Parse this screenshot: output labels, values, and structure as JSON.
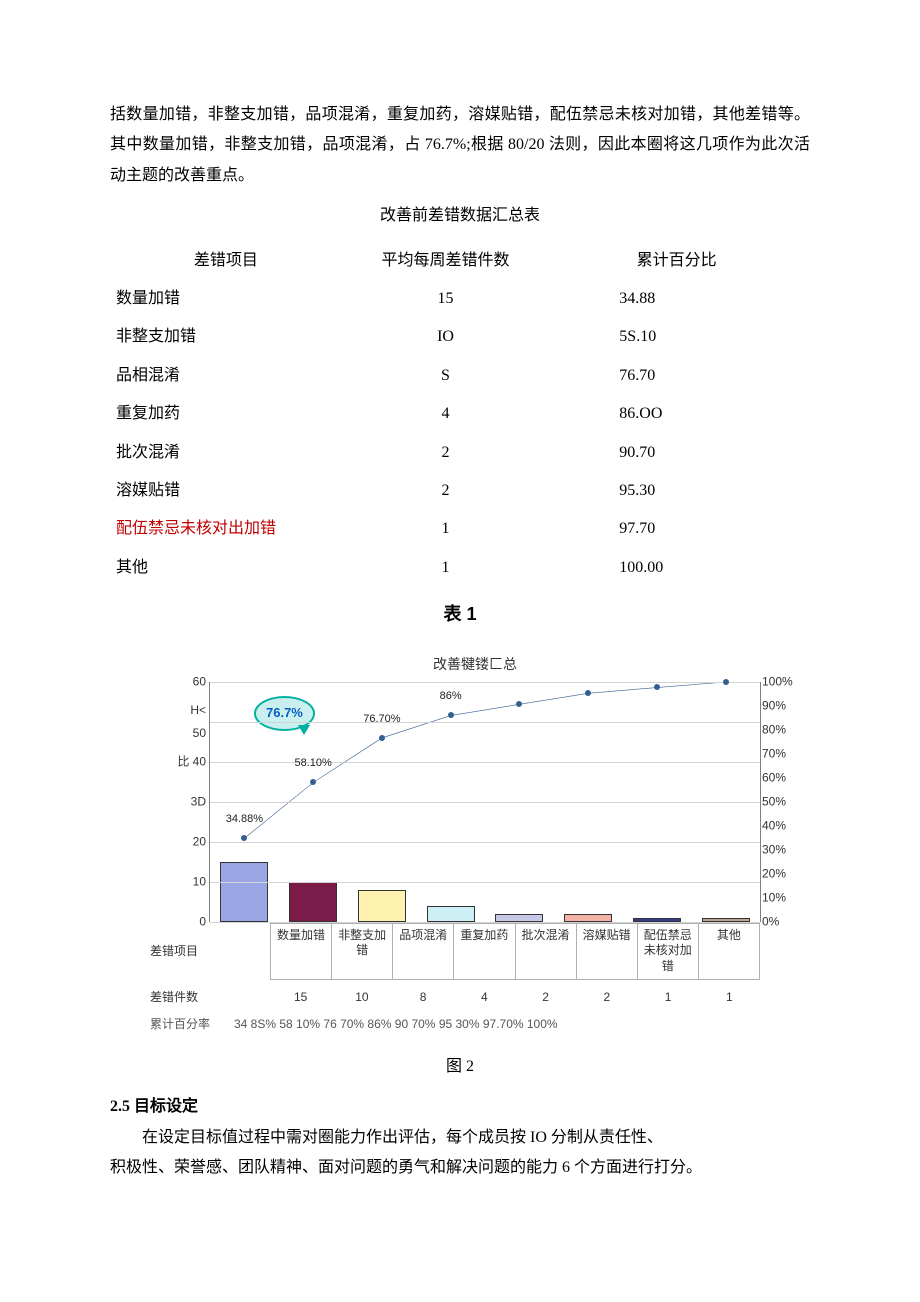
{
  "paragraph1": "括数量加错，非整支加错，品项混淆，重复加药，溶媒贴错，配伍禁忌未核对加错，其他差错等。其中数量加错，非整支加错，品项混淆，占 76.7%;根据 80/20 法则，因此本圈将这几项作为此次活动主题的改善重点。",
  "table": {
    "title": "改善前差错数据汇总表",
    "headers": [
      "差错项目",
      "平均每周差错件数",
      "累计百分比"
    ],
    "rows": [
      {
        "item": "数量加错",
        "count": "15",
        "cum": "34.88"
      },
      {
        "item": "非整支加错",
        "count": "IO",
        "cum": "5S.10"
      },
      {
        "item": "品相混淆",
        "count": "S",
        "cum": "76.70"
      },
      {
        "item": "重复加药",
        "count": "4",
        "cum": "86.OO"
      },
      {
        "item": "批次混淆",
        "count": "2",
        "cum": "90.70"
      },
      {
        "item": "溶媒贴错",
        "count": "2",
        "cum": "95.30"
      },
      {
        "item": "配伍禁忌未核对出加错",
        "count": "1",
        "cum": "97.70",
        "red": true
      },
      {
        "item": "其他",
        "count": "1",
        "cum": "100.00"
      }
    ],
    "caption": "表 1"
  },
  "chart": {
    "title": "改善犍镂匚总",
    "left_axis": {
      "max": 60,
      "ticks": [
        0,
        10,
        20,
        "3D",
        "比 40",
        "H< 50",
        60
      ]
    },
    "right_axis": {
      "ticks_pct": [
        0,
        10,
        20,
        30,
        40,
        50,
        60,
        70,
        80,
        90,
        100
      ]
    },
    "x_header": "差错项目",
    "categories": [
      "数量加错",
      "非整支加错",
      "品项混淆",
      "重复加药",
      "批次混淆",
      "溶媒贴错",
      "配伍禁忌未核对加错",
      "其他"
    ],
    "bar_values": [
      15,
      10,
      8,
      4,
      2,
      2,
      1,
      1
    ],
    "bar_colors": [
      "#9aa6e6",
      "#7a1b4a",
      "#fff2b0",
      "#cdeef2",
      "#c7c7e8",
      "#f4b3a6",
      "#2f3e8f",
      "#bca498"
    ],
    "cum_pct": [
      34.88,
      58.1,
      76.7,
      86.0,
      90.7,
      95.3,
      97.7,
      100.0
    ],
    "point_labels": [
      "34.88%",
      "58.10%",
      "76.70%",
      "86%",
      "",
      "",
      "",
      ""
    ],
    "callout": "76.7%",
    "row_count_header": "差错件数",
    "row_count_values": [
      "15",
      "10",
      "8",
      "4",
      "2",
      "2",
      "1",
      "1"
    ],
    "row_pct_header": "累计百分率",
    "row_pct_text": "34 8S% 58 10% 76 70%        86%    90 70% 95 30% 97.70% 100%",
    "caption": "图 2",
    "line_color": "#365f91",
    "grid_color": "#d4d4d4"
  },
  "section": {
    "heading": "2.5 目标设定",
    "body1": "在设定目标值过程中需对圈能力作出评估，每个成员按 IO 分制从责任性、",
    "body2": "积极性、荣誉感、团队精神、面对问题的勇气和解决问题的能力 6 个方面进行打分。"
  }
}
